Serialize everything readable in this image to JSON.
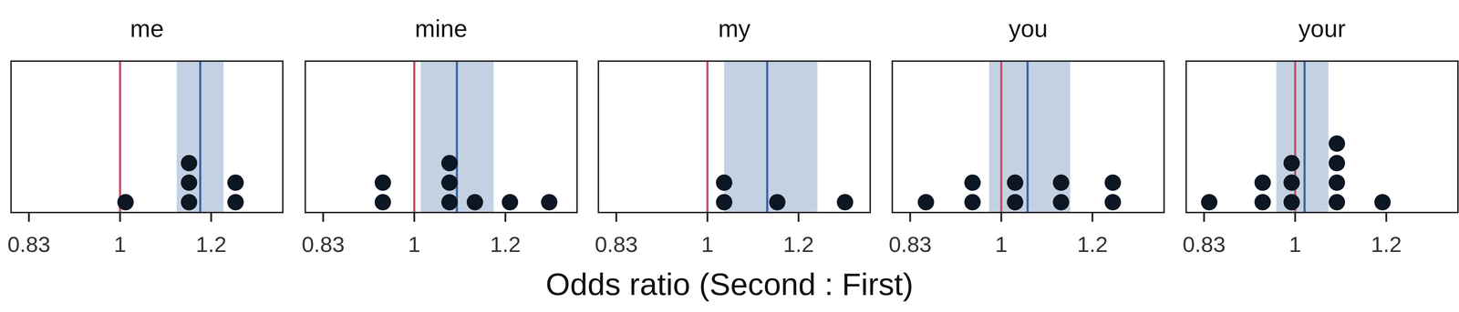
{
  "chart_data": {
    "type": "dotplot",
    "x_label": "Odds ratio (Second : First)",
    "log": "x",
    "tick_labels": "x",
    "xlim": [
      0.804,
      1.385
    ],
    "xticks": [
      {
        "value": 0.8333,
        "label": "0.83"
      },
      1,
      1.2
    ],
    "reference_line": 1,
    "reference_color": "#c4506c",
    "mean_color": "#3b66a0",
    "ci_color": "#c4d1e3",
    "color": "#0d1623",
    "panels": [
      {
        "title": "me",
        "values": [
          1.011,
          1.148,
          1.148,
          1.148,
          1.26,
          1.26
        ],
        "mean": 1.174,
        "ci": [
          1.12,
          1.23
        ]
      },
      {
        "title": "mine",
        "values": [
          0.939,
          0.939,
          1.073,
          1.073,
          1.073,
          1.129,
          1.211,
          1.31
        ],
        "mean": 1.089,
        "ci": [
          1.013,
          1.172
        ]
      },
      {
        "title": "my",
        "values": [
          1.034,
          1.034,
          1.15,
          1.317
        ],
        "mean": 1.127,
        "ci": [
          1.034,
          1.246
        ]
      },
      {
        "title": "you",
        "values": [
          0.86,
          0.944,
          0.944,
          1.028,
          1.028,
          1.127,
          1.127,
          1.25,
          1.25
        ],
        "mean": 1.054,
        "ci": [
          0.976,
          1.148
        ]
      },
      {
        "title": "your",
        "values": [
          0.842,
          0.937,
          0.937,
          0.993,
          0.993,
          0.993,
          1.087,
          1.087,
          1.087,
          1.087,
          1.191
        ],
        "mean": 1.019,
        "ci": [
          0.963,
          1.069
        ]
      }
    ]
  }
}
